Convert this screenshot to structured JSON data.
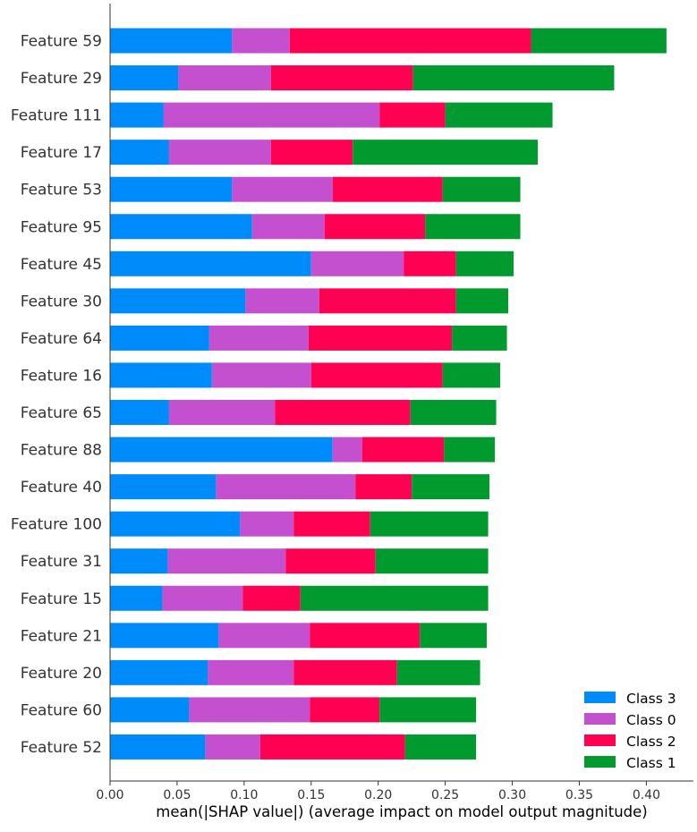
{
  "chart_data": {
    "type": "bar",
    "orientation": "horizontal",
    "stacked": true,
    "categories": [
      "Feature 59",
      "Feature 29",
      "Feature 111",
      "Feature 17",
      "Feature 53",
      "Feature 95",
      "Feature 45",
      "Feature 30",
      "Feature 64",
      "Feature 16",
      "Feature 65",
      "Feature 88",
      "Feature 40",
      "Feature 100",
      "Feature 31",
      "Feature 15",
      "Feature 21",
      "Feature 20",
      "Feature 60",
      "Feature 52"
    ],
    "series": [
      {
        "name": "Class 3",
        "color": "#008bfb",
        "values": [
          0.091,
          0.051,
          0.04,
          0.044,
          0.091,
          0.106,
          0.15,
          0.101,
          0.074,
          0.076,
          0.044,
          0.166,
          0.079,
          0.097,
          0.043,
          0.039,
          0.081,
          0.073,
          0.059,
          0.071
        ]
      },
      {
        "name": "Class 0",
        "color": "#c44fcf",
        "values": [
          0.043,
          0.069,
          0.161,
          0.076,
          0.075,
          0.054,
          0.069,
          0.055,
          0.074,
          0.074,
          0.079,
          0.022,
          0.104,
          0.04,
          0.088,
          0.06,
          0.068,
          0.064,
          0.09,
          0.041
        ]
      },
      {
        "name": "Class 2",
        "color": "#ff0052",
        "values": [
          0.18,
          0.106,
          0.049,
          0.061,
          0.082,
          0.075,
          0.039,
          0.102,
          0.107,
          0.098,
          0.101,
          0.061,
          0.042,
          0.057,
          0.067,
          0.043,
          0.082,
          0.077,
          0.052,
          0.108
        ]
      },
      {
        "name": "Class 1",
        "color": "#009a2e",
        "values": [
          0.101,
          0.15,
          0.08,
          0.138,
          0.058,
          0.071,
          0.043,
          0.039,
          0.041,
          0.043,
          0.064,
          0.038,
          0.058,
          0.088,
          0.084,
          0.14,
          0.05,
          0.062,
          0.072,
          0.053
        ]
      }
    ],
    "stack_order": [
      "Class 3",
      "Class 0",
      "Class 2",
      "Class 1"
    ],
    "legend_order": [
      "Class 3",
      "Class 0",
      "Class 2",
      "Class 1"
    ],
    "xlabel": "mean(|SHAP value|) (average impact on model output magnitude)",
    "ylabel": "",
    "title": "",
    "xlim": [
      0,
      0.435
    ],
    "xticks": [
      0.0,
      0.05,
      0.1,
      0.15,
      0.2,
      0.25,
      0.3,
      0.35,
      0.4
    ],
    "xtick_labels": [
      "0.00",
      "0.05",
      "0.10",
      "0.15",
      "0.20",
      "0.25",
      "0.30",
      "0.35",
      "0.40"
    ],
    "grid": false,
    "legend_position": "bottom-right"
  }
}
